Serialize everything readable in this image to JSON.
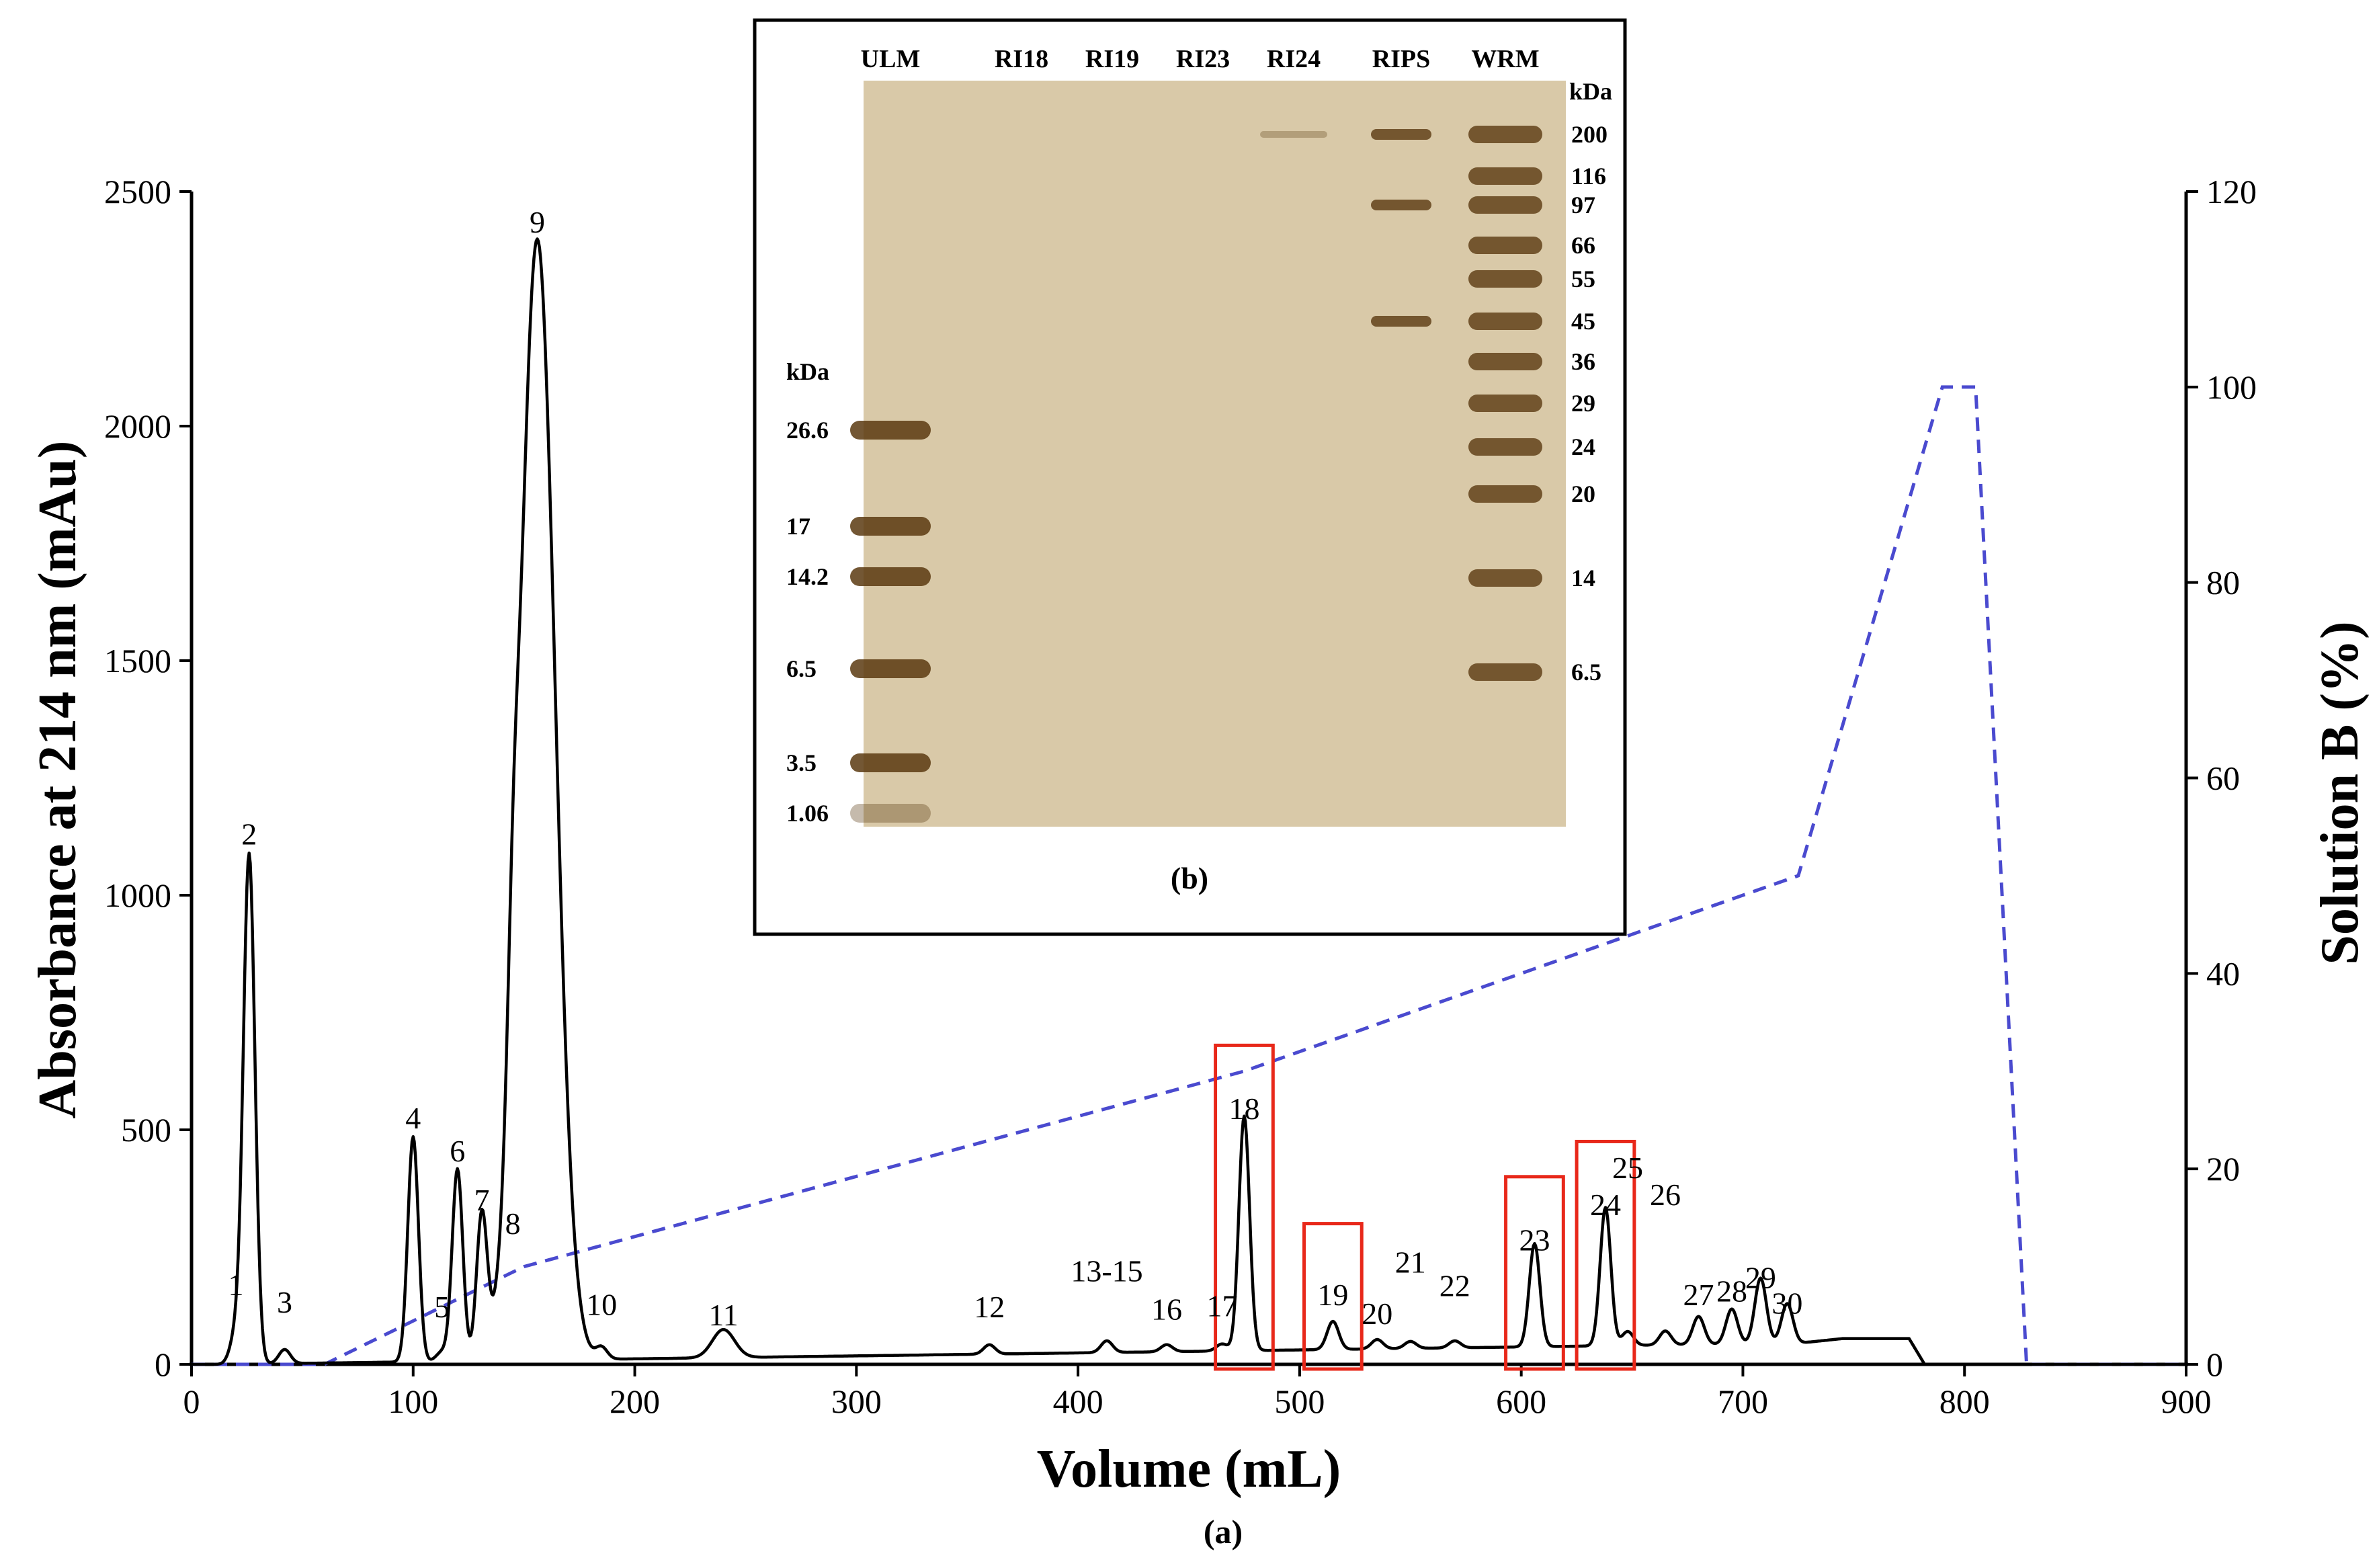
{
  "colors": {
    "absorbance": "#000000",
    "gradient": "#4a4acf",
    "highlight": "#e8281a",
    "gel_background": "#d9c9a8",
    "gel_band": "#5a3a10"
  },
  "chart_data": [
    {
      "type": "line",
      "caption": "(a)",
      "xlabel": "Volume (mL)",
      "ylabel": "Absorbance at 214 nm (mAu)",
      "y2label": "Solution B (%)",
      "xlim": [
        0,
        900
      ],
      "ylim": [
        0,
        2500
      ],
      "y2lim": [
        0,
        120
      ],
      "x_ticks": [
        0,
        100,
        200,
        300,
        400,
        500,
        600,
        700,
        800,
        900
      ],
      "y_ticks": [
        0,
        500,
        1000,
        1500,
        2000,
        2500
      ],
      "y2_ticks": [
        0,
        20,
        40,
        60,
        80,
        100,
        120
      ],
      "grid": false,
      "series": [
        {
          "axis": "left",
          "style": "solid",
          "peaks": [
            {
              "label": "1",
              "x": 20,
              "y": 60
            },
            {
              "label": "2",
              "x": 26,
              "y": 1085
            },
            {
              "label": "3",
              "x": 42,
              "y": 30
            },
            {
              "label": "4",
              "x": 100,
              "y": 480
            },
            {
              "label": "5",
              "x": 113,
              "y": 20
            },
            {
              "label": "6",
              "x": 120,
              "y": 410
            },
            {
              "label": "7",
              "x": 131,
              "y": 305
            },
            {
              "label": "8",
              "x": 145,
              "y": 255
            },
            {
              "label": "9",
              "x": 156,
              "y": 2390
            },
            {
              "label": "10",
              "x": 185,
              "y": 25
            },
            {
              "label": "11",
              "x": 240,
              "y": 60
            },
            {
              "label": "12",
              "x": 360,
              "y": 20
            },
            {
              "label": "13-15",
              "x": 413,
              "y": 25
            },
            {
              "label": "16",
              "x": 440,
              "y": 15
            },
            {
              "label": "17",
              "x": 465,
              "y": 15
            },
            {
              "label": "18",
              "x": 475,
              "y": 500
            },
            {
              "label": "19",
              "x": 515,
              "y": 60
            },
            {
              "label": "20",
              "x": 535,
              "y": 20
            },
            {
              "label": "21",
              "x": 550,
              "y": 15
            },
            {
              "label": "22",
              "x": 570,
              "y": 15
            },
            {
              "label": "23",
              "x": 606,
              "y": 220
            },
            {
              "label": "24",
              "x": 638,
              "y": 295
            },
            {
              "label": "25",
              "x": 648,
              "y": 30
            },
            {
              "label": "26",
              "x": 665,
              "y": 30
            },
            {
              "label": "27",
              "x": 680,
              "y": 60
            },
            {
              "label": "28",
              "x": 695,
              "y": 75
            },
            {
              "label": "29",
              "x": 708,
              "y": 140
            },
            {
              "label": "30",
              "x": 720,
              "y": 85
            }
          ],
          "x": [
            0,
            15,
            725,
            735,
            745,
            760,
            775,
            782,
            900
          ],
          "y": [
            0,
            0,
            45,
            50,
            55,
            55,
            55,
            0,
            0
          ]
        },
        {
          "axis": "right",
          "style": "dashed",
          "x": [
            0,
            60,
            150,
            475,
            725,
            790,
            805,
            828,
            900
          ],
          "y": [
            0,
            0,
            10,
            30,
            50,
            100,
            100,
            0,
            0
          ]
        }
      ],
      "highlighted_peaks": [
        "18",
        "19",
        "23",
        "24"
      ]
    },
    {
      "type": "table",
      "caption": "(b)",
      "lanes": [
        "ULM",
        "RI18",
        "RI19",
        "RI23",
        "RI24",
        "RIPS",
        "WRM"
      ],
      "left_marker_unit": "kDa",
      "left_markers": [
        "26.6",
        "17",
        "14.2",
        "6.5",
        "3.5",
        "1.06"
      ],
      "right_marker_unit": "kDa",
      "right_markers": [
        "200",
        "116",
        "97",
        "66",
        "55",
        "45",
        "36",
        "29",
        "24",
        "20",
        "14",
        "6.5"
      ]
    }
  ]
}
